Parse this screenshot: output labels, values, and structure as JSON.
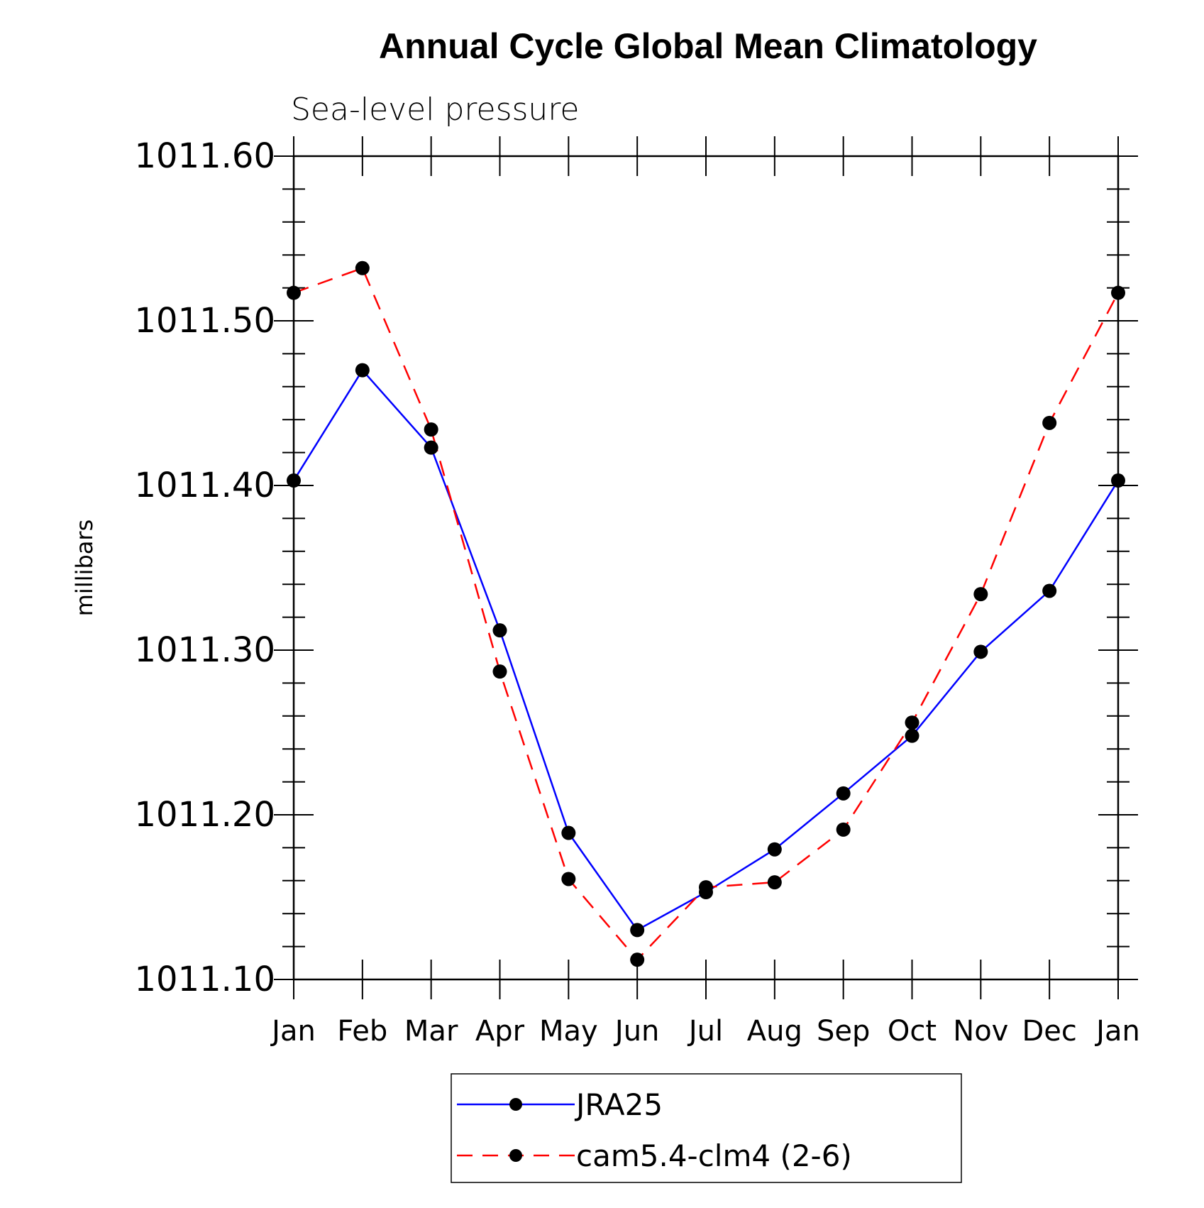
{
  "chart_data": {
    "type": "line",
    "title": "Annual Cycle Global Mean Climatology",
    "subtitle": "Sea-level pressure",
    "xlabel": "",
    "ylabel": "millibars",
    "ylim": [
      1011.1,
      1011.6
    ],
    "yticks": [
      "1011.10",
      "1011.20",
      "1011.30",
      "1011.40",
      "1011.50",
      "1011.60"
    ],
    "categories": [
      "Jan",
      "Feb",
      "Mar",
      "Apr",
      "May",
      "Jun",
      "Jul",
      "Aug",
      "Sep",
      "Oct",
      "Nov",
      "Dec",
      "Jan"
    ],
    "series": [
      {
        "name": "JRA25",
        "color": "#0000ff",
        "dash": "solid",
        "values": [
          1011.403,
          1011.47,
          1011.423,
          1011.312,
          1011.189,
          1011.13,
          1011.153,
          1011.179,
          1011.213,
          1011.248,
          1011.299,
          1011.336,
          1011.403
        ]
      },
      {
        "name": "cam5.4-clm4 (2-6)",
        "color": "#ff0000",
        "dash": "dashed",
        "values": [
          1011.517,
          1011.532,
          1011.434,
          1011.287,
          1011.161,
          1011.112,
          1011.156,
          1011.159,
          1011.191,
          1011.256,
          1011.334,
          1011.438,
          1011.517
        ]
      }
    ],
    "legend_position": "bottom-center",
    "marker_color": "#000000"
  }
}
